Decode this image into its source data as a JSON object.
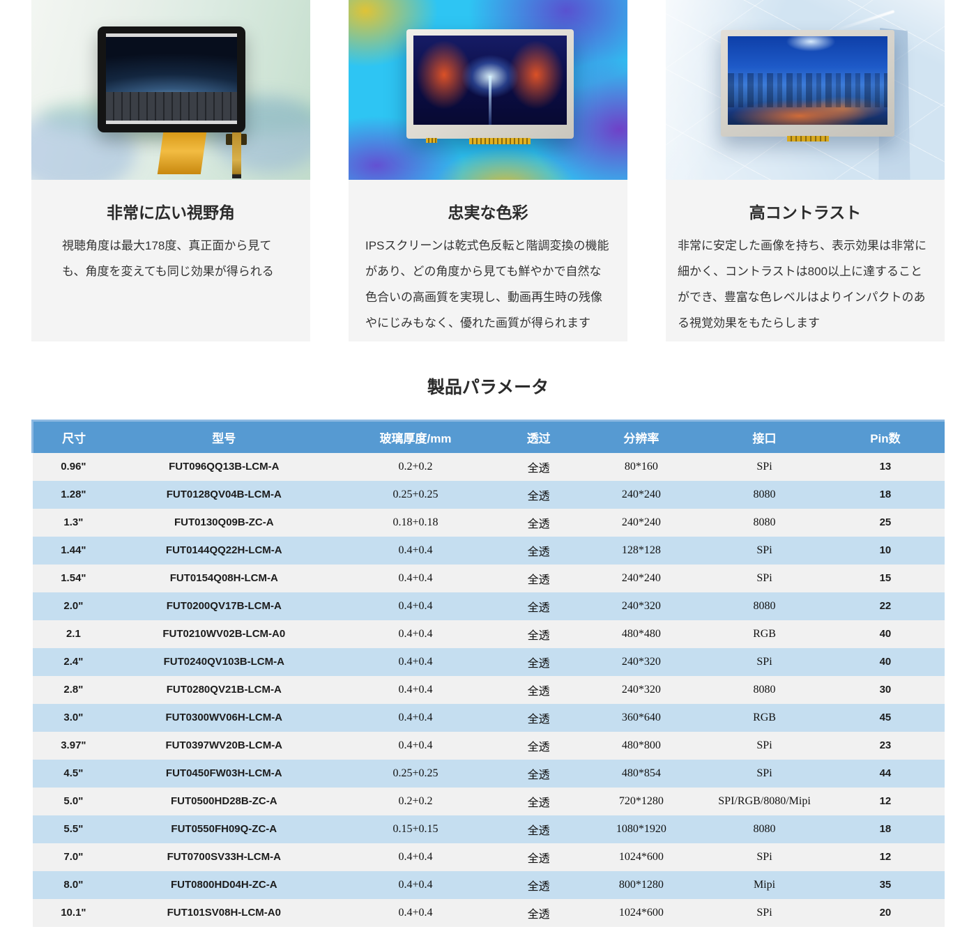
{
  "cards": [
    {
      "title": "非常に広い視野角",
      "body": "視聴角度は最大178度、真正面から見ても、角度を変えても同じ効果が得られる",
      "image": "black-bezel-lcd-with-onscreen-keyboard-in-factory"
    },
    {
      "title": "忠実な色彩",
      "body": "IPSスクリーンは乾式色反転と階調変換の機能があり、どの角度から見ても鮮やかで自然な色合いの高画質を実現し、動画再生時の残像やにじみもなく、優れた画質が得られます",
      "image": "silver-bezel-lcd-neon-tunnel-on-cyan-swirl"
    },
    {
      "title": "高コントラスト",
      "body": "非常に安定した画像を持ち、表示効果は非常に細かく、コントラストは800以上に達することができ、豊富な色レベルはよりインパクトのある視覚効果をもたらします",
      "image": "silver-bezel-lcd-night-city-on-tech-blue"
    }
  ],
  "section_title": "製品パラメータ",
  "table": {
    "header_bg": "#569ad2",
    "row_blue": "#c5def0",
    "row_gray": "#f1f1f1",
    "columns": [
      "尺寸",
      "型号",
      "玻璃厚度/mm",
      "透过",
      "分辨率",
      "接口",
      "Pin数"
    ],
    "rows": [
      [
        "0.96\"",
        "FUT096QQ13B-LCM-A",
        "0.2+0.2",
        "全透",
        "80*160",
        "SPi",
        "13"
      ],
      [
        "1.28\"",
        "FUT0128QV04B-LCM-A",
        "0.25+0.25",
        "全透",
        "240*240",
        "8080",
        "18"
      ],
      [
        "1.3\"",
        "FUT0130Q09B-ZC-A",
        "0.18+0.18",
        "全透",
        "240*240",
        "8080",
        "25"
      ],
      [
        "1.44\"",
        "FUT0144QQ22H-LCM-A",
        "0.4+0.4",
        "全透",
        "128*128",
        "SPi",
        "10"
      ],
      [
        "1.54\"",
        "FUT0154Q08H-LCM-A",
        "0.4+0.4",
        "全透",
        "240*240",
        "SPi",
        "15"
      ],
      [
        "2.0\"",
        "FUT0200QV17B-LCM-A",
        "0.4+0.4",
        "全透",
        "240*320",
        "8080",
        "22"
      ],
      [
        "2.1",
        "FUT0210WV02B-LCM-A0",
        "0.4+0.4",
        "全透",
        "480*480",
        "RGB",
        "40"
      ],
      [
        "2.4\"",
        "FUT0240QV103B-LCM-A",
        "0.4+0.4",
        "全透",
        "240*320",
        "SPi",
        "40"
      ],
      [
        "2.8\"",
        "FUT0280QV21B-LCM-A",
        "0.4+0.4",
        "全透",
        "240*320",
        "8080",
        "30"
      ],
      [
        "3.0\"",
        "FUT0300WV06H-LCM-A",
        "0.4+0.4",
        "全透",
        "360*640",
        "RGB",
        "45"
      ],
      [
        "3.97\"",
        "FUT0397WV20B-LCM-A",
        "0.4+0.4",
        "全透",
        "480*800",
        "SPi",
        "23"
      ],
      [
        "4.5\"",
        "FUT0450FW03H-LCM-A",
        "0.25+0.25",
        "全透",
        "480*854",
        "SPi",
        "44"
      ],
      [
        "5.0\"",
        "FUT0500HD28B-ZC-A",
        "0.2+0.2",
        "全透",
        "720*1280",
        "SPI/RGB/8080/Mipi",
        "12"
      ],
      [
        "5.5\"",
        "FUT0550FH09Q-ZC-A",
        "0.15+0.15",
        "全透",
        "1080*1920",
        "8080",
        "18"
      ],
      [
        "7.0\"",
        "FUT0700SV33H-LCM-A",
        "0.4+0.4",
        "全透",
        "1024*600",
        "SPi",
        "12"
      ],
      [
        "8.0\"",
        "FUT0800HD04H-ZC-A",
        "0.4+0.4",
        "全透",
        "800*1280",
        "Mipi",
        "35"
      ],
      [
        "10.1\"",
        "FUT101SV08H-LCM-A0",
        "0.4+0.4",
        "全透",
        "1024*600",
        "SPi",
        "20"
      ]
    ]
  }
}
